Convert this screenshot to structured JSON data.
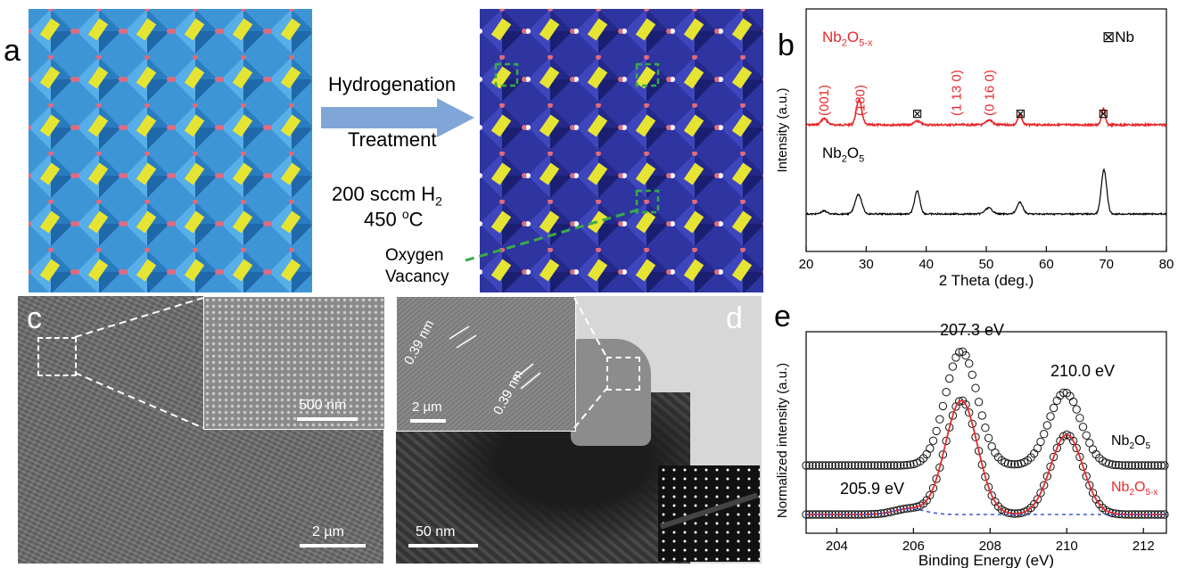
{
  "panel_a": {
    "label": "a",
    "arrow_line1": "Hydrogenation",
    "arrow_line2": "Treatment",
    "cond_line1": "200 sccm H",
    "cond_sub": "2",
    "cond_line2_num": "450 ",
    "cond_line2_sup": "o",
    "cond_line2_unit": "C",
    "vacancy_line1": "Oxygen",
    "vacancy_line2": "Vacancy",
    "colors": {
      "octa_pristine": "#3d95d6",
      "octa_hydrogenated": "#2f35a0",
      "tetra": "#e6e433",
      "oxygen": "#e06a7e",
      "vacancy": "#ffffff",
      "dash": "#3aaa4a",
      "arrow": "#7fa6d6"
    }
  },
  "panel_b": {
    "label": "b",
    "series_top_prefix": "Nb",
    "series_top_sub1": "2",
    "series_top_mid": "O",
    "series_top_sub2": "5-x",
    "series_bottom_prefix": "Nb",
    "series_bottom_sub1": "2",
    "series_bottom_mid": "O",
    "series_bottom_sub2": "5",
    "legend_marker": "⊠",
    "legend_text": "Nb",
    "peak_labels": [
      "(001)",
      "(180)",
      "(1 13 0)",
      "(0 16 0)"
    ],
    "colors": {
      "top": "#e8282b",
      "bottom": "#000000"
    }
  },
  "panel_c": {
    "label": "c",
    "scale_main": "2 µm",
    "scale_inset": "500 nm"
  },
  "panel_d": {
    "label": "d",
    "spacing1": "0.39 nm",
    "spacing2": "0.39 nm",
    "scale_inset": "2 µm",
    "scale_main": "50 nm"
  },
  "panel_e": {
    "label": "e",
    "peak_label_1": "207.3 eV",
    "peak_label_2": "210.0 eV",
    "peak_label_3": "205.9 eV",
    "series_top_prefix": "Nb",
    "series_top_sub1": "2",
    "series_top_mid": "O",
    "series_top_sub2": "5",
    "series_bottom_prefix": "Nb",
    "series_bottom_sub1": "2",
    "series_bottom_mid": "O",
    "series_bottom_sub2": "5-x"
  },
  "chart_data": [
    {
      "type": "line",
      "panel": "b",
      "xlabel": "2 Theta (deg.)",
      "ylabel": "Intensity (a.u.)",
      "xlim": [
        20,
        80
      ],
      "x_ticks": [
        20,
        30,
        40,
        50,
        60,
        70,
        80
      ],
      "grid": false,
      "series": [
        {
          "name": "Nb2O5-x",
          "peaks": [
            {
              "x": 23.0,
              "h": 0.25,
              "w": 0.5
            },
            {
              "x": 28.8,
              "h": 1.0,
              "w": 0.45
            },
            {
              "x": 38.5,
              "h": 0.15,
              "w": 0.5
            },
            {
              "x": 50.5,
              "h": 0.2,
              "w": 0.5
            },
            {
              "x": 55.6,
              "h": 0.4,
              "w": 0.35
            },
            {
              "x": 69.5,
              "h": 0.65,
              "w": 0.3
            }
          ]
        },
        {
          "name": "Nb2O5",
          "peaks": [
            {
              "x": 23.0,
              "h": 0.1,
              "w": 0.5
            },
            {
              "x": 28.7,
              "h": 0.65,
              "w": 0.55
            },
            {
              "x": 38.5,
              "h": 0.75,
              "w": 0.45
            },
            {
              "x": 50.4,
              "h": 0.2,
              "w": 0.6
            },
            {
              "x": 55.6,
              "h": 0.38,
              "w": 0.5
            },
            {
              "x": 69.6,
              "h": 1.45,
              "w": 0.45
            }
          ]
        }
      ],
      "annotations": [
        {
          "text": "(001)",
          "x": 23
        },
        {
          "text": "(180)",
          "x": 29
        },
        {
          "text": "(1 13 0)",
          "x": 45
        },
        {
          "text": "(0 16 0)",
          "x": 50.5
        },
        {
          "text": "⊠",
          "x": 38.5
        },
        {
          "text": "⊠",
          "x": 55.7
        },
        {
          "text": "⊠",
          "x": 69.5
        }
      ]
    },
    {
      "type": "scatter",
      "panel": "e",
      "xlabel": "Binding Energy (eV)",
      "ylabel": "Normalized intensity (a.u.)",
      "xlim": [
        203.2,
        212.6
      ],
      "x_ticks": [
        204,
        206,
        208,
        210,
        212
      ],
      "grid": false,
      "series": [
        {
          "name": "Nb2O5",
          "peaks": [
            {
              "x": 207.25,
              "h": 1.0,
              "w": 0.42
            },
            {
              "x": 209.95,
              "h": 0.64,
              "w": 0.42
            }
          ]
        },
        {
          "name": "Nb2O5-x",
          "peaks": [
            {
              "x": 207.25,
              "h": 1.0,
              "w": 0.42
            },
            {
              "x": 210.0,
              "h": 0.7,
              "w": 0.42
            },
            {
              "x": 205.9,
              "h": 0.05,
              "w": 0.4
            }
          ]
        }
      ]
    }
  ]
}
